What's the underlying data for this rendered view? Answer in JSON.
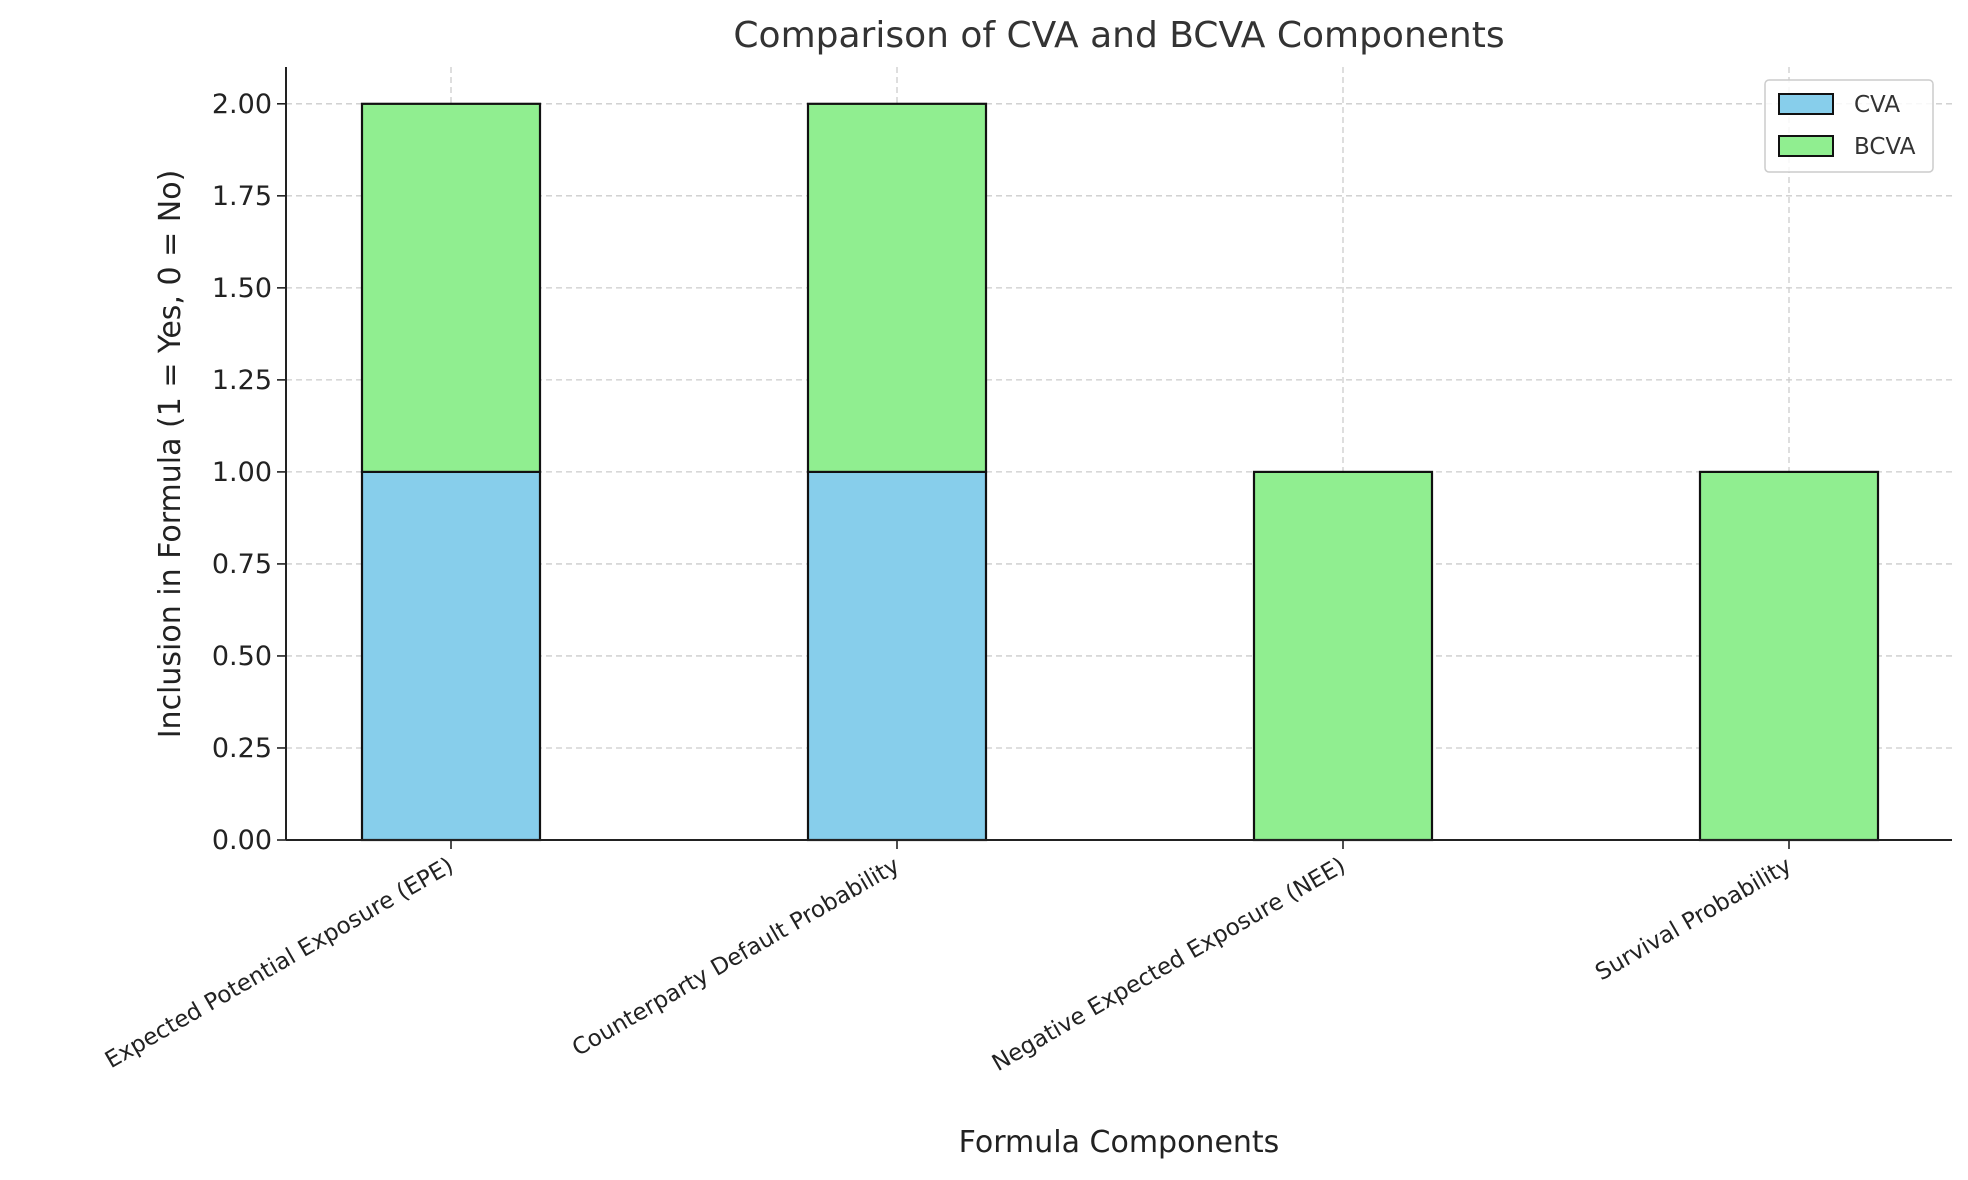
{
  "chart_data": {
    "type": "bar",
    "stacked": true,
    "title": "Comparison of CVA and BCVA Components",
    "xlabel": "Formula Components",
    "ylabel": "Inclusion in Formula (1 = Yes, 0 = No)",
    "categories": [
      "Expected Potential Exposure (EPE)",
      "Counterparty Default Probability",
      "Negative Expected Exposure (NEE)",
      "Survival Probability"
    ],
    "series": [
      {
        "name": "CVA",
        "values": [
          1,
          1,
          0,
          0
        ],
        "color": "#87CEEB"
      },
      {
        "name": "BCVA",
        "values": [
          1,
          1,
          1,
          1
        ],
        "color": "#90EE90"
      }
    ],
    "ylim": [
      0,
      2.1
    ],
    "yticks": [
      "0.00",
      "0.25",
      "0.50",
      "0.75",
      "1.00",
      "1.25",
      "1.50",
      "1.75",
      "2.00"
    ],
    "grid": true,
    "legend_position": "top-right"
  }
}
